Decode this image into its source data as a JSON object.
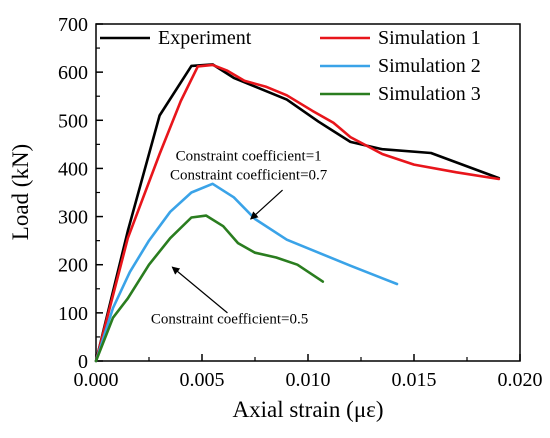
{
  "chart_data": {
    "type": "line",
    "xlabel": "Axial strain (με)",
    "ylabel": "Load (kN)",
    "xlim": [
      0.0,
      0.02
    ],
    "ylim": [
      0,
      700
    ],
    "xticks": [
      "0.000",
      "0.005",
      "0.010",
      "0.015",
      "0.020"
    ],
    "yticks": [
      "0",
      "100",
      "200",
      "300",
      "400",
      "500",
      "600",
      "700"
    ],
    "grid": false,
    "legend_position": "top",
    "series": [
      {
        "name": "Experiment",
        "color": "#000000",
        "x": [
          0.0,
          0.0015,
          0.003,
          0.0045,
          0.0055,
          0.0065,
          0.0075,
          0.009,
          0.0105,
          0.012,
          0.0135,
          0.0158,
          0.019
        ],
        "y": [
          0,
          270,
          510,
          613,
          616,
          588,
          570,
          543,
          497,
          455,
          440,
          432,
          380
        ]
      },
      {
        "name": "Simulation 1",
        "color": "#e8151b",
        "x": [
          0.0,
          0.0015,
          0.003,
          0.004,
          0.0048,
          0.0055,
          0.0062,
          0.007,
          0.008,
          0.009,
          0.0102,
          0.0112,
          0.012,
          0.0135,
          0.015,
          0.017,
          0.019
        ],
        "y": [
          0,
          255,
          430,
          540,
          612,
          615,
          603,
          582,
          570,
          552,
          520,
          495,
          465,
          430,
          408,
          392,
          378
        ]
      },
      {
        "name": "Simulation 2",
        "color": "#3aa3e8",
        "x": [
          0.0,
          0.0008,
          0.0016,
          0.0025,
          0.0035,
          0.0045,
          0.0055,
          0.0065,
          0.0075,
          0.009,
          0.0105,
          0.012,
          0.0142
        ],
        "y": [
          0,
          110,
          185,
          250,
          310,
          350,
          368,
          340,
          295,
          252,
          225,
          198,
          160
        ]
      },
      {
        "name": "Simulation 3",
        "color": "#2a7d1f",
        "x": [
          0.0,
          0.0008,
          0.0015,
          0.0025,
          0.0035,
          0.0045,
          0.0052,
          0.006,
          0.0067,
          0.0075,
          0.0085,
          0.0095,
          0.0107
        ],
        "y": [
          0,
          90,
          130,
          200,
          255,
          298,
          302,
          280,
          245,
          225,
          215,
          200,
          165
        ]
      }
    ],
    "annotations": [
      {
        "text": "Constraint coefficient=1",
        "x": 0.0072,
        "y": 416,
        "arrow_to": null
      },
      {
        "text": "Constraint coefficient=0.7",
        "x": 0.0072,
        "y": 377,
        "arrow_from": [
          0.0088,
          355
        ],
        "arrow_to": [
          0.0073,
          295
        ]
      },
      {
        "text": "Constraint coefficient=0.5",
        "x": 0.0063,
        "y": 78,
        "arrow_from": [
          0.0062,
          100
        ],
        "arrow_to": [
          0.0036,
          195
        ]
      }
    ]
  }
}
